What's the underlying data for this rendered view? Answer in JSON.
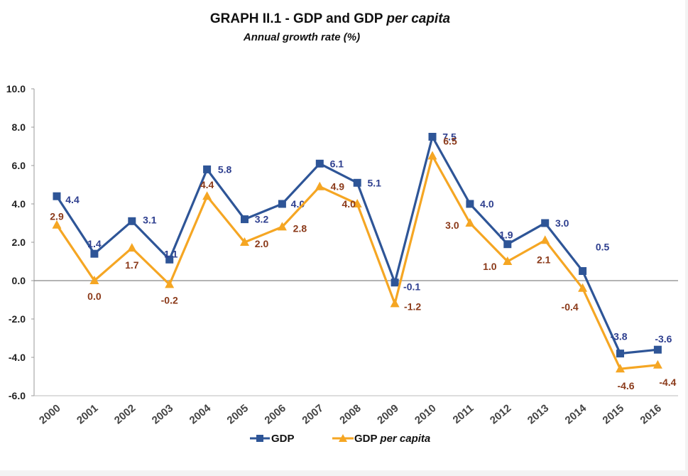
{
  "chart_data": {
    "type": "line",
    "title_main": "GRAPH II.1 - GDP and GDP ",
    "title_ital": "per capita",
    "subtitle": "Annual growth rate (%)",
    "categories": [
      "2000",
      "2001",
      "2002",
      "2003",
      "2004",
      "2005",
      "2006",
      "2007",
      "2008",
      "2009",
      "2010",
      "2011",
      "2012",
      "2013",
      "2014",
      "2015",
      "2016"
    ],
    "ylim": [
      -6,
      10
    ],
    "yticks": [
      "-6.0",
      "-4.0",
      "-2.0",
      "0.0",
      "2.0",
      "4.0",
      "6.0",
      "8.0",
      "10.0"
    ],
    "series": [
      {
        "name": "GDP",
        "color": "#2e5597",
        "marker": "square",
        "values": [
          4.4,
          1.4,
          3.1,
          1.1,
          5.8,
          3.2,
          4.0,
          6.1,
          5.1,
          -0.1,
          7.5,
          4.0,
          1.9,
          3.0,
          0.5,
          -3.8,
          -3.6
        ],
        "labels": [
          "4.4",
          "1.4",
          "3.1",
          "1.1",
          "5.8",
          "3.2",
          "4.0",
          "6.1",
          "5.1",
          "-0.1",
          "7.5",
          "4.0",
          "1.9",
          "3.0",
          "0.5",
          "-3.8",
          "-3.6"
        ]
      },
      {
        "name_main": "GDP ",
        "name_ital": "per capita",
        "color": "#f5a623",
        "marker": "triangle",
        "values": [
          2.9,
          0.0,
          1.7,
          -0.2,
          4.4,
          2.0,
          2.8,
          4.9,
          4.0,
          -1.2,
          6.5,
          3.0,
          1.0,
          2.1,
          -0.4,
          -4.6,
          -4.4
        ],
        "labels": [
          "2.9",
          "0.0",
          "1.7",
          "-0.2",
          "4.4",
          "2.0",
          "2.8",
          "4.9",
          "4.0",
          "-1.2",
          "6.5",
          "3.0",
          "1.0",
          "2.1",
          "-0.4",
          "-4.6",
          "-4.4"
        ]
      }
    ],
    "legend": "bottom-center",
    "grid": false
  }
}
